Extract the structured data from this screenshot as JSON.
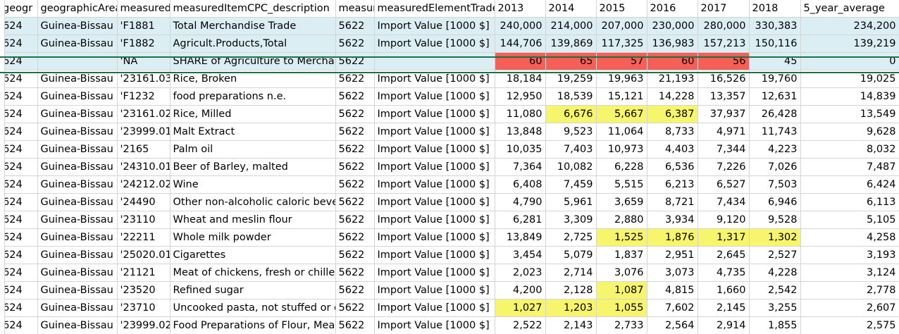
{
  "headers": [
    "geogr",
    "geographicArea",
    "measuredItemCPC",
    "measuredItemCPC_description",
    "measuredElement",
    "measuredElementTrade",
    "2013",
    "2014",
    "2015",
    "2016",
    "2017",
    "2018",
    "5_year_average"
  ],
  "rows": [
    {
      "cls": "blue",
      "cells": [
        "624",
        "Guinea-Bissau",
        "'F1881",
        "Total Merchandise Trade",
        "5622",
        "Import Value [1000 $]",
        "240,000",
        "214,000",
        "207,000",
        "230,000",
        "280,000",
        "330,383",
        "234,200"
      ],
      "hl": []
    },
    {
      "cls": "blue",
      "cells": [
        "624",
        "Guinea-Bissau",
        "'F1882",
        "Agricult.Products,Total",
        "5622",
        "Import Value [1000 $]",
        "144,706",
        "139,869",
        "117,325",
        "136,983",
        "157,213",
        "150,116",
        "139,219"
      ],
      "hl": []
    },
    {
      "cls": "blue",
      "cells": [
        "624",
        "",
        "'NA",
        "SHARE of Agriculture to Merchandise Trade",
        "5622",
        "",
        "60",
        "65",
        "57",
        "60",
        "56",
        "45",
        "0"
      ],
      "hl": [
        "r",
        "r",
        "r",
        "r",
        "r",
        "",
        ""
      ]
    },
    {
      "cls": "",
      "cells": [
        "624",
        "Guinea-Bissau",
        "'23161.03",
        "Rice, Broken",
        "5622",
        "Import Value [1000 $]",
        "18,184",
        "19,259",
        "19,963",
        "21,193",
        "16,526",
        "19,760",
        "19,025"
      ],
      "hl": []
    },
    {
      "cls": "",
      "cells": [
        "624",
        "Guinea-Bissau",
        "'F1232",
        "food preparations n.e.",
        "5622",
        "Import Value [1000 $]",
        "12,950",
        "18,539",
        "15,121",
        "14,228",
        "13,357",
        "12,631",
        "14,839"
      ],
      "hl": []
    },
    {
      "cls": "",
      "cells": [
        "624",
        "Guinea-Bissau",
        "'23161.02",
        "Rice, Milled",
        "5622",
        "Import Value [1000 $]",
        "11,080",
        "6,676",
        "5,667",
        "6,387",
        "37,937",
        "26,428",
        "13,549"
      ],
      "hl": [
        "",
        "y",
        "y",
        "y",
        "",
        "",
        ""
      ]
    },
    {
      "cls": "",
      "cells": [
        "624",
        "Guinea-Bissau",
        "'23999.01",
        "Malt Extract",
        "5622",
        "Import Value [1000 $]",
        "13,848",
        "9,523",
        "11,064",
        "8,733",
        "4,971",
        "11,743",
        "9,628"
      ],
      "hl": []
    },
    {
      "cls": "",
      "cells": [
        "624",
        "Guinea-Bissau",
        "'2165",
        "Palm oil",
        "5622",
        "Import Value [1000 $]",
        "10,035",
        "7,403",
        "10,973",
        "4,403",
        "7,344",
        "4,223",
        "8,032"
      ],
      "hl": []
    },
    {
      "cls": "",
      "cells": [
        "624",
        "Guinea-Bissau",
        "'24310.01",
        "Beer of Barley, malted",
        "5622",
        "Import Value [1000 $]",
        "7,364",
        "10,082",
        "6,228",
        "6,536",
        "7,226",
        "7,026",
        "7,487"
      ],
      "hl": []
    },
    {
      "cls": "",
      "cells": [
        "624",
        "Guinea-Bissau",
        "'24212.02",
        "Wine",
        "5622",
        "Import Value [1000 $]",
        "6,408",
        "7,459",
        "5,515",
        "6,213",
        "6,527",
        "7,503",
        "6,424"
      ],
      "hl": []
    },
    {
      "cls": "",
      "cells": [
        "624",
        "Guinea-Bissau",
        "'24490",
        "Other non-alcoholic caloric beverages",
        "5622",
        "Import Value [1000 $]",
        "4,790",
        "5,961",
        "3,659",
        "8,721",
        "7,434",
        "6,946",
        "6,113"
      ],
      "hl": []
    },
    {
      "cls": "",
      "cells": [
        "624",
        "Guinea-Bissau",
        "'23110",
        "Wheat and meslin flour",
        "5622",
        "Import Value [1000 $]",
        "6,281",
        "3,309",
        "2,880",
        "3,934",
        "9,120",
        "9,528",
        "5,105"
      ],
      "hl": []
    },
    {
      "cls": "",
      "cells": [
        "624",
        "Guinea-Bissau",
        "'22211",
        "Whole milk powder",
        "5622",
        "Import Value [1000 $]",
        "13,849",
        "2,725",
        "1,525",
        "1,876",
        "1,317",
        "1,302",
        "4,258"
      ],
      "hl": [
        "",
        "",
        "y",
        "y",
        "y",
        "y",
        ""
      ]
    },
    {
      "cls": "",
      "cells": [
        "624",
        "Guinea-Bissau",
        "'25020.01",
        "Cigarettes",
        "5622",
        "Import Value [1000 $]",
        "3,454",
        "5,079",
        "1,837",
        "2,951",
        "2,645",
        "2,527",
        "3,193"
      ],
      "hl": []
    },
    {
      "cls": "",
      "cells": [
        "624",
        "Guinea-Bissau",
        "'21121",
        "Meat of chickens, fresh or chilled",
        "5622",
        "Import Value [1000 $]",
        "2,023",
        "2,714",
        "3,076",
        "3,073",
        "4,735",
        "4,228",
        "3,124"
      ],
      "hl": []
    },
    {
      "cls": "",
      "cells": [
        "624",
        "Guinea-Bissau",
        "'23520",
        "Refined sugar",
        "5622",
        "Import Value [1000 $]",
        "4,200",
        "2,128",
        "1,087",
        "4,815",
        "1,660",
        "2,542",
        "2,778"
      ],
      "hl": [
        "",
        "",
        "y",
        "",
        "",
        "",
        ""
      ]
    },
    {
      "cls": "",
      "cells": [
        "624",
        "Guinea-Bissau",
        "'23710",
        "Uncooked pasta, not stuffed or otherwise prepared",
        "5622",
        "Import Value [1000 $]",
        "1,027",
        "1,203",
        "1,055",
        "7,602",
        "2,145",
        "3,255",
        "2,607"
      ],
      "hl": [
        "y",
        "y",
        "y",
        "",
        "",
        "",
        ""
      ]
    },
    {
      "cls": "",
      "cells": [
        "624",
        "Guinea-Bissau",
        "'23999.02",
        "Food Preparations of Flour, Meal or Malt Extract",
        "5622",
        "Import Value [1000 $]",
        "2,522",
        "2,143",
        "2,733",
        "2,564",
        "2,914",
        "1,855",
        "2,575"
      ],
      "hl": []
    }
  ]
}
